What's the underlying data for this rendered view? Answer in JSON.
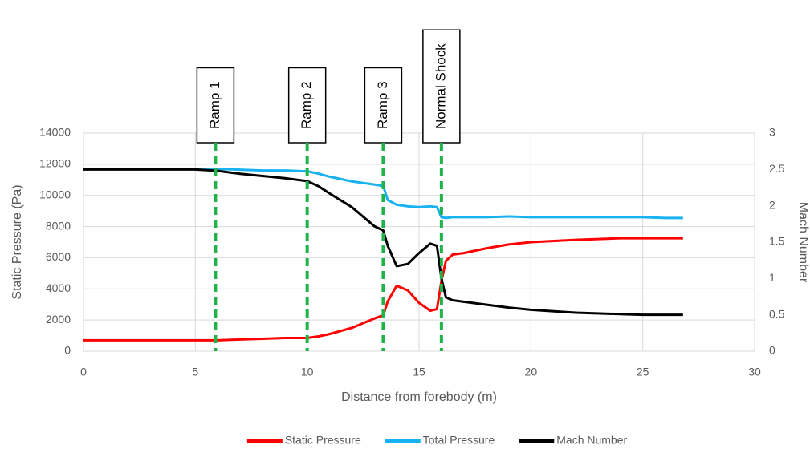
{
  "chart_data": {
    "type": "line",
    "x_label": "Distance from forebody (m)",
    "y_label": "Static Pressure (Pa)",
    "y2_label": "Mach Number",
    "x": [
      0,
      2,
      4,
      5,
      6,
      7,
      8,
      9,
      10,
      10.5,
      11,
      12,
      13,
      13.4,
      13.6,
      14,
      14.5,
      15,
      15.5,
      15.8,
      16,
      16.2,
      16.5,
      17,
      18,
      19,
      20,
      22,
      24,
      25,
      26,
      26.8
    ],
    "series": [
      {
        "name": "Static Pressure",
        "color": "#ff0000",
        "values": [
          700,
          700,
          700,
          700,
          700,
          750,
          800,
          850,
          850,
          950,
          1100,
          1500,
          2100,
          2300,
          3200,
          4200,
          3900,
          3100,
          2600,
          2700,
          4500,
          5800,
          6200,
          6300,
          6600,
          6850,
          7000,
          7150,
          7250,
          7250,
          7250,
          7250
        ]
      },
      {
        "name": "Total Pressure",
        "color": "#19b2f0",
        "values": [
          11700,
          11700,
          11700,
          11700,
          11700,
          11650,
          11600,
          11600,
          11550,
          11400,
          11200,
          10900,
          10700,
          10600,
          9700,
          9400,
          9300,
          9250,
          9300,
          9250,
          8600,
          8550,
          8600,
          8600,
          8600,
          8650,
          8600,
          8600,
          8600,
          8600,
          8550,
          8550
        ]
      },
      {
        "name": "Mach Number",
        "color": "#000000",
        "axis": "y2",
        "values": [
          2.5,
          2.5,
          2.5,
          2.5,
          2.48,
          2.44,
          2.41,
          2.38,
          2.34,
          2.27,
          2.17,
          1.98,
          1.72,
          1.66,
          1.45,
          1.17,
          1.2,
          1.35,
          1.48,
          1.45,
          1.0,
          0.74,
          0.7,
          0.68,
          0.64,
          0.6,
          0.57,
          0.53,
          0.51,
          0.5,
          0.5,
          0.5
        ]
      }
    ],
    "xlim": [
      0,
      30
    ],
    "xticks": [
      0,
      5,
      10,
      15,
      20,
      25,
      30
    ],
    "ylim": [
      0,
      14000
    ],
    "yticks": [
      0,
      2000,
      4000,
      6000,
      8000,
      10000,
      12000,
      14000
    ],
    "y2lim": [
      0,
      3
    ],
    "y2ticks": [
      0,
      0.5,
      1,
      1.5,
      2,
      2.5,
      3
    ],
    "grid": true,
    "annotations": [
      {
        "label": "Ramp 1",
        "x": 5.9
      },
      {
        "label": "Ramp 2",
        "x": 10
      },
      {
        "label": "Ramp 3",
        "x": 13.4
      },
      {
        "label": "Normal Shock",
        "x": 16
      }
    ],
    "annotation_color": "#1fb34a",
    "legend": "bottom"
  }
}
